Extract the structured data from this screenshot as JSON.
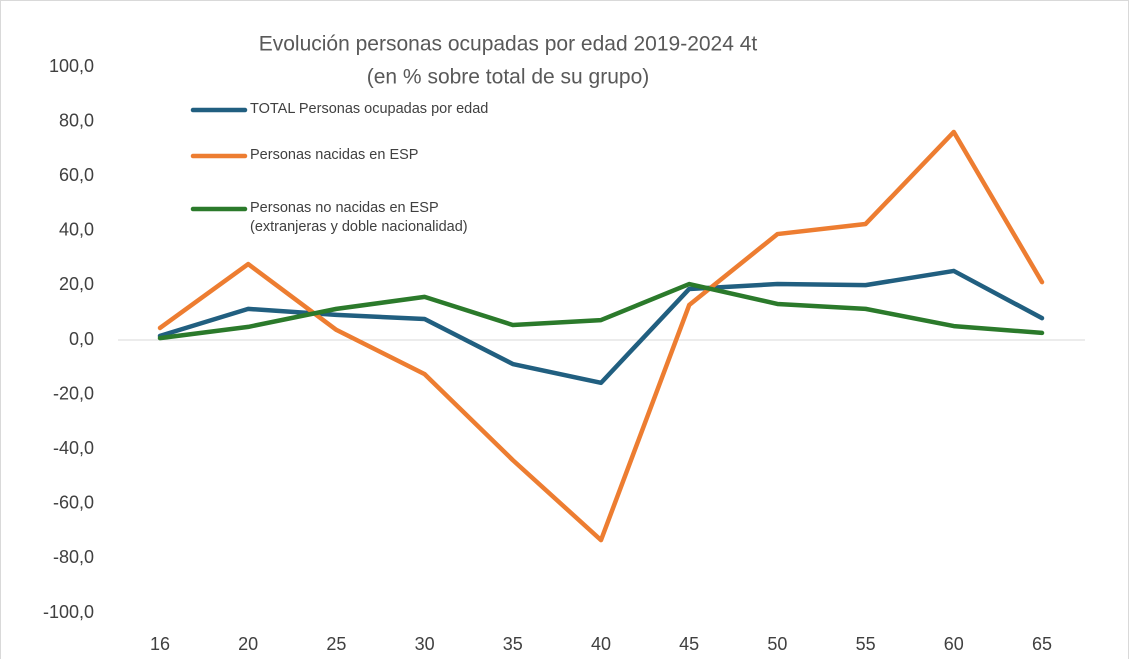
{
  "chart_data": {
    "type": "line",
    "title": "Evolución personas ocupadas por edad 2019-2024 4t",
    "subtitle": "(en % sobre total de su grupo)",
    "categories": [
      "16",
      "20",
      "25",
      "30",
      "35",
      "40",
      "45",
      "50",
      "55",
      "60",
      "65"
    ],
    "series": [
      {
        "name": "TOTAL Personas ocupadas por edad",
        "color": "#215f80",
        "values": [
          1.5,
          11.4,
          9.2,
          7.7,
          -8.8,
          -15.7,
          18.7,
          20.5,
          20.1,
          25.3,
          8.0
        ]
      },
      {
        "name": "Personas nacidas en ESP",
        "color": "#ed7d31",
        "values": [
          4.4,
          27.8,
          3.7,
          -12.5,
          -44.0,
          -73.3,
          12.8,
          38.8,
          42.5,
          76.2,
          21.2
        ]
      },
      {
        "name": "Personas no nacidas en ESP\n(extranjeras y doble nacionalidad)",
        "color": "#2b7a2b",
        "values": [
          0.7,
          4.8,
          11.4,
          15.8,
          5.5,
          7.3,
          20.5,
          13.2,
          11.4,
          5.1,
          2.6
        ]
      }
    ],
    "ylim": [
      -100,
      100
    ],
    "yticks": [
      {
        "value": -100,
        "label": "-100,0"
      },
      {
        "value": -80,
        "label": "-80,0"
      },
      {
        "value": -60,
        "label": "-60,0"
      },
      {
        "value": -40,
        "label": "-40,0"
      },
      {
        "value": -20,
        "label": "-20,0"
      },
      {
        "value": 0,
        "label": "0,0"
      },
      {
        "value": 20,
        "label": "20,0"
      },
      {
        "value": 40,
        "label": "40,0"
      },
      {
        "value": 60,
        "label": "60,0"
      },
      {
        "value": 80,
        "label": "80,0"
      },
      {
        "value": 100,
        "label": "100,0"
      }
    ],
    "grid": false
  }
}
